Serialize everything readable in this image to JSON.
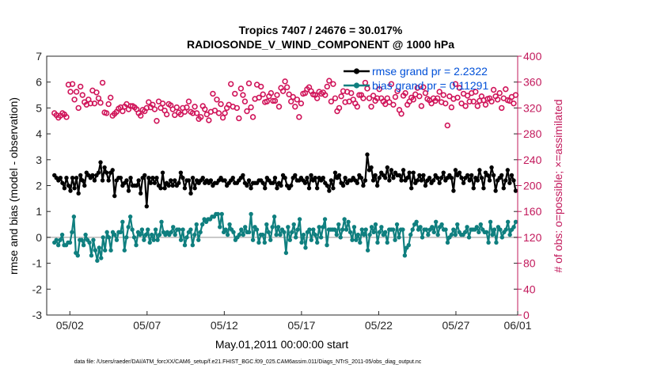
{
  "chart_data": {
    "type": "line",
    "title": "Tropics 7407 / 24676 = 30.017%",
    "subtitle": "RADIOSONDE_V_WIND_COMPONENT @ 1000 hPa",
    "xlabel": "May.01,2011 00:00:00 start",
    "ylabel_left": "rmse and bias (model - observation)",
    "ylabel_right": "# of obs: o=possible; ×=assimilated",
    "xlim": [
      0.5,
      31.0
    ],
    "ylim_left": [
      -3,
      7
    ],
    "ylim_right": [
      0,
      400
    ],
    "x_ticks": [
      {
        "value": 2,
        "label": "05/02"
      },
      {
        "value": 7,
        "label": "05/07"
      },
      {
        "value": 12,
        "label": "05/12"
      },
      {
        "value": 17,
        "label": "05/17"
      },
      {
        "value": 22,
        "label": "05/22"
      },
      {
        "value": 27,
        "label": "05/27"
      },
      {
        "value": 32,
        "label": "06/01"
      }
    ],
    "y_ticks_left": [
      "-3",
      "-2",
      "-1",
      "0",
      "1",
      "2",
      "3",
      "4",
      "5",
      "6",
      "7"
    ],
    "y_ticks_right": [
      "0",
      "40",
      "80",
      "120",
      "160",
      "200",
      "240",
      "280",
      "320",
      "360",
      "400"
    ],
    "legend": [
      {
        "label": "rmse grand pr = 2.2322",
        "color": "#000000"
      },
      {
        "label": "bias grand pr = 0.11291",
        "color": "#008080"
      }
    ],
    "colors": {
      "rmse": "#000000",
      "bias": "#0f7f7f",
      "obs": "#d0155a",
      "zero_line": "#b7b7b7",
      "legend_text": "#0050d8",
      "right_axis": "#c2185b"
    },
    "series": [
      {
        "name": "rmse",
        "axis": "left",
        "y": [
          2.4,
          2.3,
          2.2,
          2.3,
          2.1,
          1.9,
          2.3,
          2.0,
          1.8,
          2.3,
          1.9,
          2.3,
          1.7,
          2.4,
          2.2,
          2.0,
          2.5,
          2.4,
          2.3,
          2.4,
          2.2,
          2.4,
          2.5,
          2.9,
          2.2,
          2.7,
          2.5,
          2.2,
          2.5,
          2.6,
          1.6,
          2.2,
          2.3,
          2.3,
          2.0,
          2.1,
          2.2,
          1.8,
          2.3,
          2.0,
          2.0,
          2.0,
          2.2,
          1.7,
          2.3,
          2.4,
          1.2,
          2.3,
          2.1,
          2.3,
          2.1,
          2.3,
          2.0,
          1.9,
          2.5,
          1.9,
          2.1,
          2.0,
          2.2,
          2.0,
          2.2,
          2.0,
          2.1,
          2.5,
          2.3,
          1.9,
          2.2,
          2.2,
          1.7,
          2.3,
          1.9,
          2.2,
          2.1,
          2.2,
          2.3,
          2.1,
          2.2,
          2.1,
          2.2,
          2.0,
          2.1,
          2.1,
          2.2,
          2.3,
          2.2,
          2.2,
          2.0,
          2.1,
          2.2,
          2.3,
          2.1,
          2.1,
          2.2,
          2.3,
          2.4,
          2.1,
          2.0,
          2.2,
          1.9,
          2.1,
          2.1,
          2.1,
          2.2,
          2.2,
          2.1,
          1.9,
          2.3,
          2.2,
          2.1,
          2.1,
          2.3,
          1.9,
          2.1,
          2.0,
          2.4,
          2.3,
          2.0,
          1.9,
          2.0,
          2.3,
          2.4,
          2.2,
          2.2,
          2.3,
          2.2,
          2.1,
          2.3,
          1.9,
          2.4,
          2.2,
          2.3,
          1.9,
          2.3,
          2.2,
          2.3,
          2.1,
          2.0,
          1.8,
          2.2,
          1.9,
          2.5,
          2.3,
          2.4,
          2.1,
          2.0,
          2.3,
          2.1,
          2.2,
          2.2,
          2.3,
          2.2,
          2.1,
          2.4,
          2.3,
          2.0,
          2.2,
          3.2,
          2.6,
          2.7,
          2.2,
          2.4,
          2.0,
          2.3,
          2.5,
          2.4,
          2.3,
          2.7,
          2.2,
          2.6,
          2.3,
          2.5,
          2.4,
          2.4,
          2.2,
          2.6,
          2.2,
          2.3,
          2.5,
          1.9,
          2.5,
          2.1,
          2.2,
          2.4,
          2.2,
          2.4,
          2.0,
          2.2,
          2.3,
          2.1,
          2.2,
          2.4,
          2.3,
          2.1,
          2.3,
          2.5,
          2.2,
          2.3,
          2.4,
          2.3,
          1.8,
          2.6,
          2.4,
          2.5,
          2.3,
          2.1,
          2.3,
          2.4,
          2.2,
          2.4,
          1.9,
          2.3,
          2.2,
          2.6,
          2.3,
          1.9,
          2.5,
          2.4,
          2.2,
          2.7,
          2.4,
          1.8,
          2.2,
          2.3,
          2.4,
          1.9,
          2.2,
          2.6,
          2.1,
          2.4,
          2.2,
          1.8
        ]
      },
      {
        "name": "bias",
        "axis": "left",
        "y": [
          -0.2,
          -0.1,
          -0.3,
          -0.1,
          0.1,
          -0.3,
          -0.3,
          -0.2,
          -0.2,
          0.2,
          0.8,
          -0.6,
          -0.7,
          -0.1,
          -0.1,
          -0.3,
          0.1,
          -0.1,
          -0.2,
          -0.7,
          -0.1,
          -0.5,
          -0.9,
          -0.4,
          -0.8,
          0.0,
          -0.5,
          0.2,
          0.0,
          -0.5,
          0.2,
          0.1,
          -0.1,
          0.2,
          0.2,
          0.6,
          -0.5,
          0.0,
          0.4,
          0.8,
          0.3,
          0.0,
          -0.3,
          0.2,
          0.1,
          0.3,
          -0.1,
          0.1,
          0.3,
          -0.2,
          0.1,
          -0.1,
          0.3,
          -0.1,
          0.1,
          0.6,
          0.2,
          0.1,
          0.2,
          0.1,
          0.2,
          0.4,
          0.1,
          0.3,
          0.3,
          -0.1,
          0.3,
          -0.3,
          0.0,
          0.2,
          0.3,
          -0.3,
          0.1,
          0.5,
          -0.1,
          0.2,
          0.5,
          0.7,
          0.6,
          0.7,
          0.7,
          0.8,
          0.8,
          0.9,
          0.9,
          0.4,
          0.9,
          0.2,
          0.3,
          0.1,
          0.5,
          0.3,
          0.2,
          -0.1,
          0.0,
          0.1,
          0.3,
          0.1,
          0.4,
          0.2,
          0.2,
          0.9,
          -0.1,
          0.4,
          0.3,
          -0.2,
          0.1,
          0.1,
          -0.2,
          0.5,
          0.2,
          -0.1,
          0.4,
          0.8,
          0.1,
          0.4,
          0.1,
          0.3,
          0.2,
          -0.6,
          0.4,
          -0.1,
          0.2,
          0.5,
          0.0,
          0.3,
          0.7,
          -0.2,
          0.1,
          -0.4,
          0.2,
          0.3,
          -0.1,
          0.3,
          0.1,
          -0.2,
          0.4,
          0.0,
          0.4,
          0.7,
          -0.3,
          0.3,
          0.3,
          0.3,
          0.3,
          0.1,
          0.5,
          0.0,
          0.3,
          0.7,
          0.3,
          0.6,
          0.2,
          -0.1,
          0.4,
          -0.1,
          0.1,
          -0.2,
          0.3,
          0.1,
          0.3,
          -0.5,
          0.1,
          0.4,
          0.2,
          0.5,
          -0.2,
          0.2,
          0.4,
          0.1,
          0.2,
          -0.2,
          0.3,
          0.3,
          0.3,
          -0.1,
          0.5,
          0.0,
          0.3,
          0.3,
          -0.7,
          -0.4,
          -0.3,
          0.1,
          0.3,
          0.5,
          0.6,
          0.3,
          0.4,
          0.0,
          0.3,
          0.3,
          0.1,
          0.3,
          0.4,
          0.2,
          0.6,
          0.1,
          0.4,
          0.5,
          0.3,
          0.3,
          -0.2,
          0.0,
          0.1,
          0.3,
          0.1,
          0.5,
          0.2,
          0.1,
          0.1,
          0.2,
          0.4,
          0.0,
          0.3,
          0.3,
          0.3,
          0.4,
          0.2,
          0.5,
          0.3,
          0.2,
          0.2,
          -0.2,
          0.6,
          0.1,
          0.3,
          -0.2,
          0.4,
          0.3,
          0.0,
          0.2,
          0.3,
          0.6,
          0.1,
          0.3,
          0.4,
          0.6
        ]
      },
      {
        "name": "possible",
        "axis": "right",
        "y": [
          312,
          309,
          305,
          308,
          312,
          310,
          306,
          356,
          345,
          357,
          333,
          345,
          320,
          353,
          340,
          329,
          325,
          333,
          327,
          347,
          327,
          344,
          335,
          328,
          359,
          313,
          312,
          326,
          336,
          308,
          311,
          314,
          319,
          321,
          315,
          322,
          326,
          318,
          323,
          323,
          321,
          318,
          312,
          308,
          317,
          315,
          320,
          329,
          321,
          325,
          318,
          300,
          330,
          320,
          327,
          316,
          310,
          326,
          324,
          318,
          309,
          321,
          313,
          310,
          320,
          314,
          321,
          330,
          314,
          312,
          322,
          312,
          303,
          306,
          323,
          318,
          310,
          301,
          314,
          342,
          316,
          333,
          312,
          326,
          305,
          312,
          320,
          325,
          357,
          322,
          342,
          320,
          304,
          350,
          340,
          330,
          315,
          358,
          321,
          306,
          334,
          356,
          336,
          353,
          341,
          329,
          330,
          338,
          343,
          331,
          331,
          340,
          322,
          351,
          346,
          361,
          352,
          341,
          330,
          337,
          322,
          333,
          306,
          327,
          342,
          343,
          349,
          352,
          346,
          341,
          340,
          335,
          345,
          342,
          344,
          340,
          353,
          362,
          330,
          357,
          335,
          315,
          320,
          338,
          346,
          329,
          345,
          330,
          343,
          333,
          327,
          322,
          340,
          340,
          335,
          359,
          350,
          335,
          322,
          339,
          331,
          335,
          349,
          335,
          330,
          326,
          335,
          329,
          357,
          325,
          337,
          346,
          317,
          311,
          339,
          343,
          325,
          330,
          336,
          333,
          341,
          351,
          338,
          323,
          352,
          343,
          334,
          332,
          327,
          335,
          331,
          335,
          345,
          329,
          340,
          327,
          293,
          338,
          321,
          334,
          357,
          336,
          351,
          327,
          342,
          323,
          339,
          330,
          343,
          330,
          345,
          323,
          331,
          338,
          332,
          325,
          334,
          335,
          330,
          348,
          338,
          333,
          343,
          320,
          335,
          349,
          332,
          331,
          337,
          327,
          340
        ]
      }
    ],
    "footer": "data file: /Users/raeder/DAI/ATM_forcXX/CAM6_setup/f.e21.FHIST_BGC.f09_025.CAM6assim.011/Diags_NTrS_2011-05/obs_diag_output.nc"
  }
}
